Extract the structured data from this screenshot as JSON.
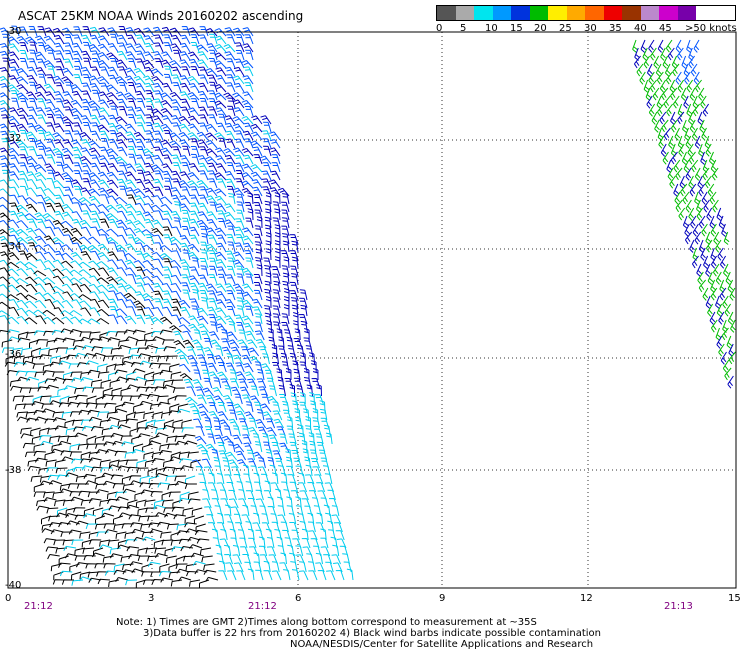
{
  "title": "ASCAT 25KM NOAA Winds 20160202 ascending",
  "legend": {
    "colors": [
      "#555555",
      "#aaaaaa",
      "#00e5ee",
      "#0080ff",
      "#0000cc",
      "#00aa00",
      "#88cc00",
      "#ffee00",
      "#ffaa00",
      "#ff6600",
      "#ee0000",
      "#aa3300",
      "#996655",
      "#cc00cc",
      "#8800aa",
      "#ff00ff",
      "#440099"
    ],
    "labels": [
      "0",
      "5",
      "10",
      "15",
      "20",
      "25",
      "30",
      "35",
      "40",
      "45",
      ">50 knots"
    ]
  },
  "axes": {
    "y_labels": [
      "-30",
      "-32",
      "-34",
      "-36",
      "-38",
      "-40"
    ],
    "x_labels": [
      "0",
      "3",
      "6",
      "9",
      "12",
      "15"
    ],
    "time_labels": [
      "21:12",
      "21:12",
      "21:13"
    ]
  },
  "notes": [
    "Note: 1) Times are GMT 2)Times along bottom correspond to measurement at ~35S",
    "3)Data buffer is 22 hrs from 20160202 4) Black wind barbs indicate possible contamination",
    "NOAA/NESDIS/Center for Satellite Applications and Research"
  ],
  "wind_colors": {
    "contaminated": "#000000",
    "light": "#00ccee",
    "moderate": "#0055ff",
    "strong": "#0000bb",
    "green": "#00bb00"
  }
}
